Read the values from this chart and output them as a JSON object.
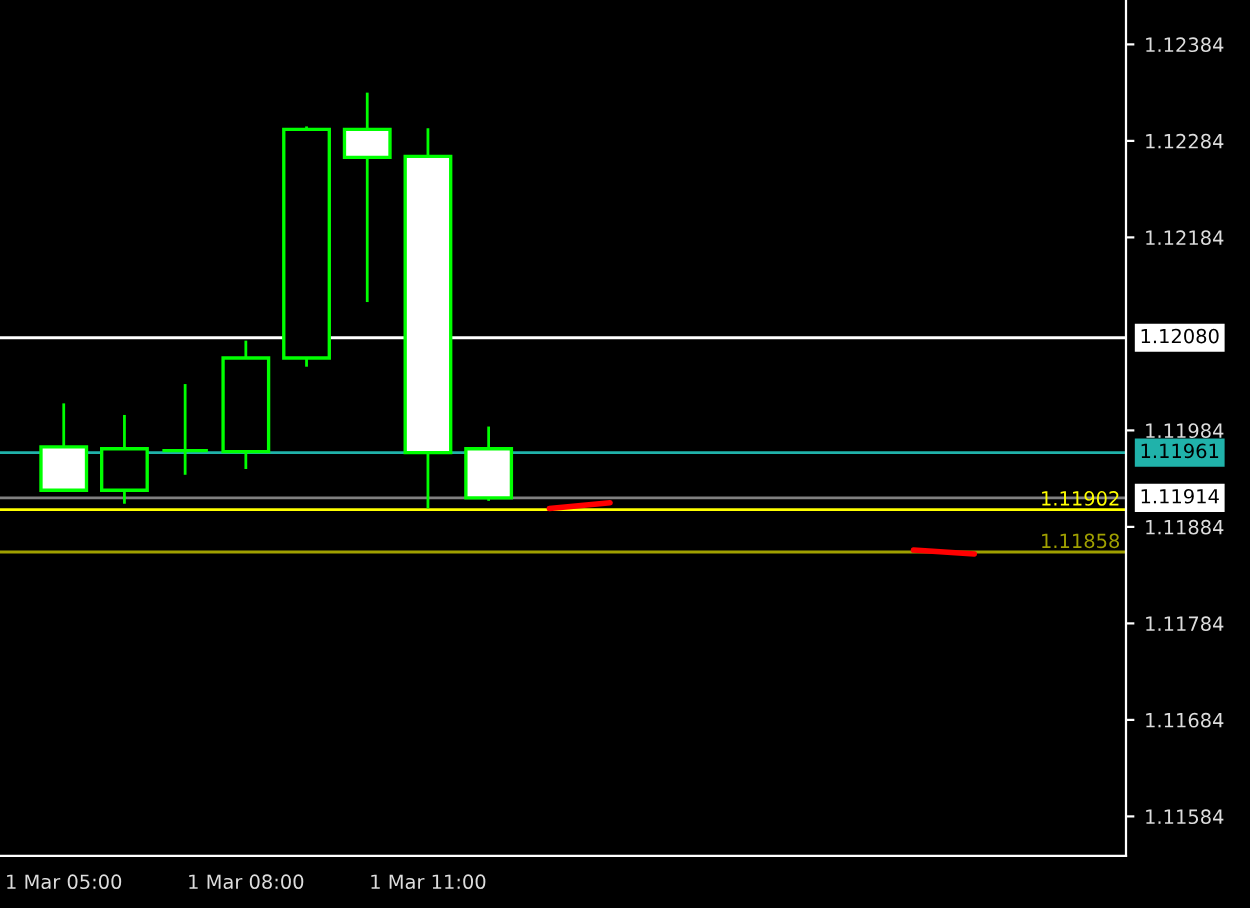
{
  "chart_data": {
    "type": "candlestick",
    "categories": [
      "1 Mar 05:00",
      null,
      null,
      "1 Mar 08:00",
      null,
      null,
      "1 Mar 11:00",
      null,
      null,
      null,
      null,
      null,
      null,
      null,
      null,
      null,
      null,
      null
    ],
    "ohlc": [
      [
        1.11967,
        1.12012,
        1.11922,
        1.11922
      ],
      [
        1.11922,
        1.12,
        1.11908,
        1.11965
      ],
      [
        1.11963,
        1.12032,
        1.11938,
        1.11963
      ],
      [
        1.11962,
        1.12077,
        1.11944,
        1.12059
      ],
      [
        1.12059,
        1.12299,
        1.1205,
        1.12296
      ],
      [
        1.12296,
        1.12334,
        1.12117,
        1.12267
      ],
      [
        1.12268,
        1.12297,
        1.11903,
        1.11961
      ],
      [
        1.11965,
        1.11988,
        1.11911,
        1.11914
      ],
      null,
      null,
      null,
      null,
      null,
      null,
      null,
      null,
      null,
      null
    ],
    "color": "#00ff00",
    "series": [
      {
        "type": "line",
        "color": "#ff0000",
        "values": [
          null,
          null,
          null,
          null,
          null,
          null,
          null,
          null,
          1.11903,
          1.11909,
          null,
          null,
          null,
          null,
          null,
          null,
          null,
          null
        ]
      },
      {
        "type": "line",
        "color": "#ff0000",
        "values": [
          null,
          null,
          null,
          null,
          null,
          null,
          null,
          null,
          null,
          null,
          null,
          null,
          null,
          null,
          1.1186,
          1.11856,
          null,
          null
        ]
      }
    ],
    "ylim": [
      1.11543,
      1.1243
    ],
    "yticks": [
      1.12384,
      1.12284,
      1.12184,
      1.11984,
      1.11884,
      1.11784,
      1.11684,
      1.11584
    ],
    "ref_lines": [
      {
        "axis": "y",
        "value": 1.1208,
        "label": "1.12080",
        "color": "#ffffff"
      },
      {
        "axis": "y",
        "value": 1.11961,
        "label": "1.11961",
        "color": "#20b2aa"
      },
      {
        "axis": "y",
        "value": 1.11914,
        "label": "1.11914",
        "color": "#808080"
      },
      {
        "axis": "y",
        "value": 1.11902,
        "color": "#ffff00"
      },
      {
        "axis": "y",
        "value": 1.11858,
        "color": "#a0a000"
      }
    ],
    "annotations": [
      {
        "text": "1.11902",
        "y": 1.11902
      },
      {
        "text": "1.11858",
        "y": 1.11858
      }
    ],
    "grid": false,
    "legend": false
  }
}
